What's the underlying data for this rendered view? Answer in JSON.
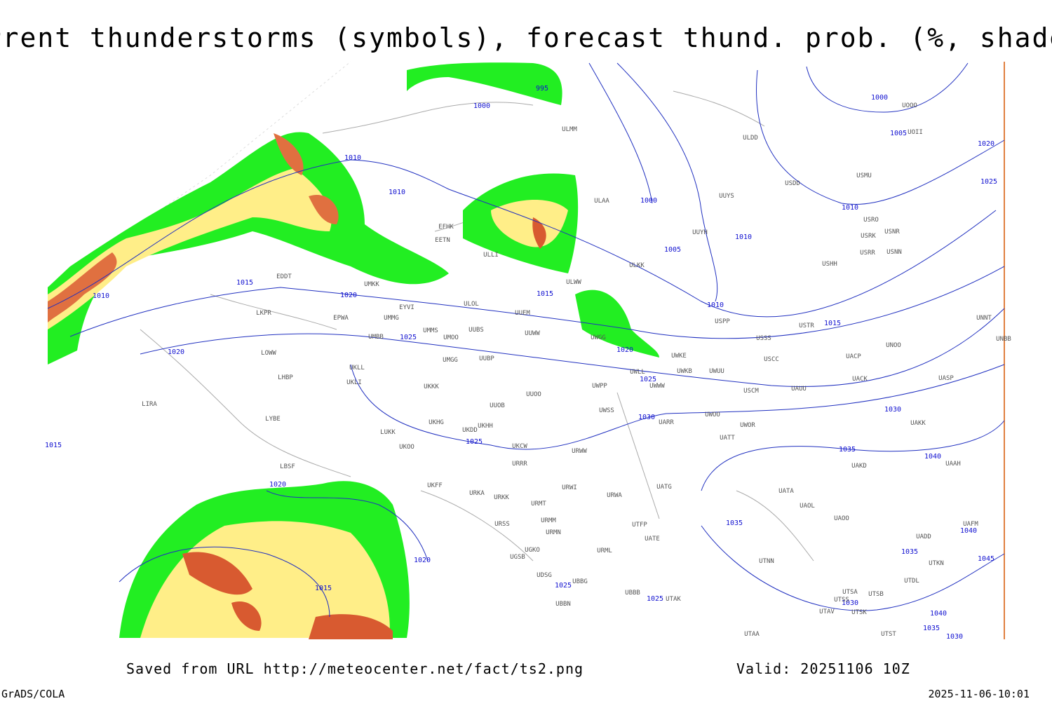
{
  "header": {
    "title": "Current thunderstorms (symbols), forecast thund. prob. (%, shaded)"
  },
  "footer": {
    "source": "Saved from URL http://meteocenter.net/fact/ts2.png",
    "valid": "Valid: 20251106 10Z",
    "software": "GrADS/COLA",
    "timestamp": "2025-11-06-10:01"
  },
  "isobar_labels": [
    995,
    1000,
    1000,
    1005,
    1010,
    1010,
    1000,
    1020,
    1025,
    1010,
    1005,
    1010,
    1015,
    1010,
    1015,
    1010,
    1020,
    1015,
    1025,
    1020,
    1020,
    1025,
    1030,
    1030,
    1025,
    1015,
    1035,
    1040,
    1020,
    1035,
    1040,
    1020,
    1035,
    1045,
    1025,
    1015,
    1030,
    1025,
    1040,
    1035,
    1030
  ],
  "stations": [
    "ULMM",
    "ULDD",
    "UOOO",
    "UOII",
    "USMU",
    "USDD",
    "UUYS",
    "ULAA",
    "USRO",
    "USRK",
    "USNR",
    "USRR",
    "USNN",
    "UUYH",
    "EFHK",
    "EETN",
    "ULLI",
    "ULKK",
    "USHH",
    "UMKK",
    "ULWW",
    "EDDT",
    "EYVI",
    "ULOL",
    "UUEM",
    "LKPR",
    "EPWA",
    "UMMG",
    "USPP",
    "UMMS",
    "UUBS",
    "UUWW",
    "UNNT",
    "UMBB",
    "UMOO",
    "USSS",
    "UWGG",
    "USTR",
    "UNBB",
    "UNOO",
    "LOWW",
    "UWKE",
    "UACP",
    "USCC",
    "UMGG",
    "UUBP",
    "UKLL",
    "UWKB",
    "UWUU",
    "UWLL",
    "LHBP",
    "UKLI",
    "UACK",
    "UASP",
    "UWWW",
    "UWPP",
    "USCM",
    "UAUU",
    "UKKK",
    "LIRA",
    "UUOO",
    "UUOB",
    "UWSS",
    "LYBE",
    "UKHG",
    "UARR",
    "UWOO",
    "UWOR",
    "UAKK",
    "UKDD",
    "UKHH",
    "LUKK",
    "UATT",
    "UKOO",
    "UKCW",
    "URWW",
    "URRR",
    "UAKD",
    "LBSF",
    "UAAH",
    "UKFF",
    "URWI",
    "UATG",
    "URKA",
    "URKK",
    "UATA",
    "URMT",
    "URWA",
    "UAOL",
    "URSS",
    "URMM",
    "UAOO",
    "UAFM",
    "UATE",
    "URMN",
    "UTFP",
    "UADD",
    "UGKO",
    "URML",
    "UGSB",
    "UTNN",
    "UTKN",
    "UDSG",
    "UBBG",
    "UTDL",
    "UBBB",
    "UTSA",
    "UTSB",
    "UBBN",
    "UTAK",
    "UTSS",
    "UTAV",
    "UTSK",
    "UTAA",
    "UTST"
  ]
}
